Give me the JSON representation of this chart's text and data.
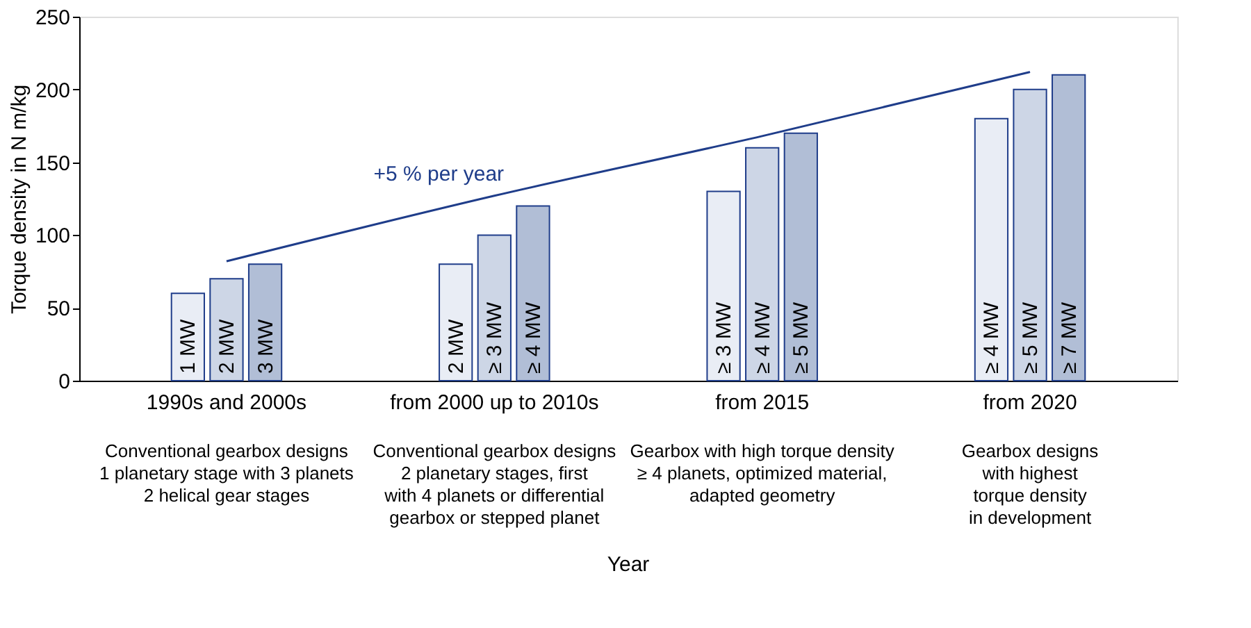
{
  "chart_data": {
    "type": "bar",
    "ylabel": "Torque density in N m/kg",
    "categories": [
      "1990s and 2000s",
      "from 2000 up to 2010s",
      "from 2015",
      "from 2020"
    ],
    "series": [
      {
        "color": "#e9edf5",
        "values": [
          60,
          80,
          130,
          180
        ]
      },
      {
        "color": "#cdd6e6",
        "values": [
          70,
          100,
          160,
          200
        ]
      },
      {
        "color": "#b1bed6",
        "values": [
          80,
          120,
          170,
          210
        ]
      },
      {
        "type": "line",
        "name": "+5 % per year",
        "color": "#1f3d8a",
        "values": [
          82,
          127,
          168,
          212
        ]
      }
    ],
    "ylim": [
      0,
      250
    ],
    "yticks": [
      0,
      50,
      100,
      150,
      200,
      250
    ],
    "grid": false,
    "marker": "none",
    "annotations": [
      {
        "text": "1 MW",
        "x": "1990s and 2000s",
        "y": 0
      },
      {
        "text": "2 MW",
        "x": "1990s and 2000s",
        "y": 0
      },
      {
        "text": "3 MW",
        "x": "1990s and 2000s",
        "y": 0
      },
      {
        "text": "2 MW",
        "x": "from 2000 up to 2010s",
        "y": 0
      },
      {
        "text": "≥ 3 MW",
        "x": "from 2000 up to 2010s",
        "y": 0
      },
      {
        "text": "≥ 4 MW",
        "x": "from 2000 up to 2010s",
        "y": 0
      },
      {
        "text": "≥ 3 MW",
        "x": "from 2015",
        "y": 0
      },
      {
        "text": "≥ 4 MW",
        "x": "from 2015",
        "y": 0
      },
      {
        "text": "≥ 5 MW",
        "x": "from 2015",
        "y": 0
      },
      {
        "text": "≥ 4 MW",
        "x": "from 2020",
        "y": 0
      },
      {
        "text": "≥ 5 MW",
        "x": "from 2020",
        "y": 0
      },
      {
        "text": "≥ 7 MW",
        "x": "from 2020",
        "y": 0
      },
      "Conventional gearbox designs\n1 planetary stage with 3 planets\n2 helical gear stages",
      "Conventional gearbox designs\n2 planetary stages, first\nwith 4 planets or differential\ngearbox or stepped planet",
      "Gearbox with high torque density\n≥ 4 planets, optimized material,\nadapted geometry",
      "Gearbox designs\nwith highest\ntorque density\nin development",
      "Year"
    ]
  }
}
